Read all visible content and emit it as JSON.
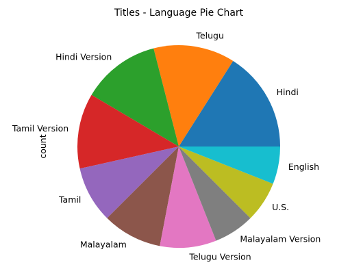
{
  "chart_data": {
    "type": "pie",
    "title": "Titles - Language Pie Chart",
    "ylabel": "count",
    "start_angle_deg": 0,
    "direction": "counterclockwise",
    "slices": [
      {
        "label": "Hindi",
        "value": 16,
        "color": "#1f77b4"
      },
      {
        "label": "Telugu",
        "value": 13,
        "color": "#ff7f0e"
      },
      {
        "label": "Hindi Version",
        "value": 12.5,
        "color": "#2ca02c"
      },
      {
        "label": "Tamil Version",
        "value": 12,
        "color": "#d62728"
      },
      {
        "label": "Tamil",
        "value": 9,
        "color": "#9467bd"
      },
      {
        "label": "Malayalam",
        "value": 9.5,
        "color": "#8c564b"
      },
      {
        "label": "Telugu Version",
        "value": 9,
        "color": "#e377c2"
      },
      {
        "label": "Malayalam Version",
        "value": 6.5,
        "color": "#7f7f7f"
      },
      {
        "label": "U.S.",
        "value": 6.5,
        "color": "#bcbd22"
      },
      {
        "label": "English",
        "value": 6,
        "color": "#17becf"
      }
    ]
  }
}
